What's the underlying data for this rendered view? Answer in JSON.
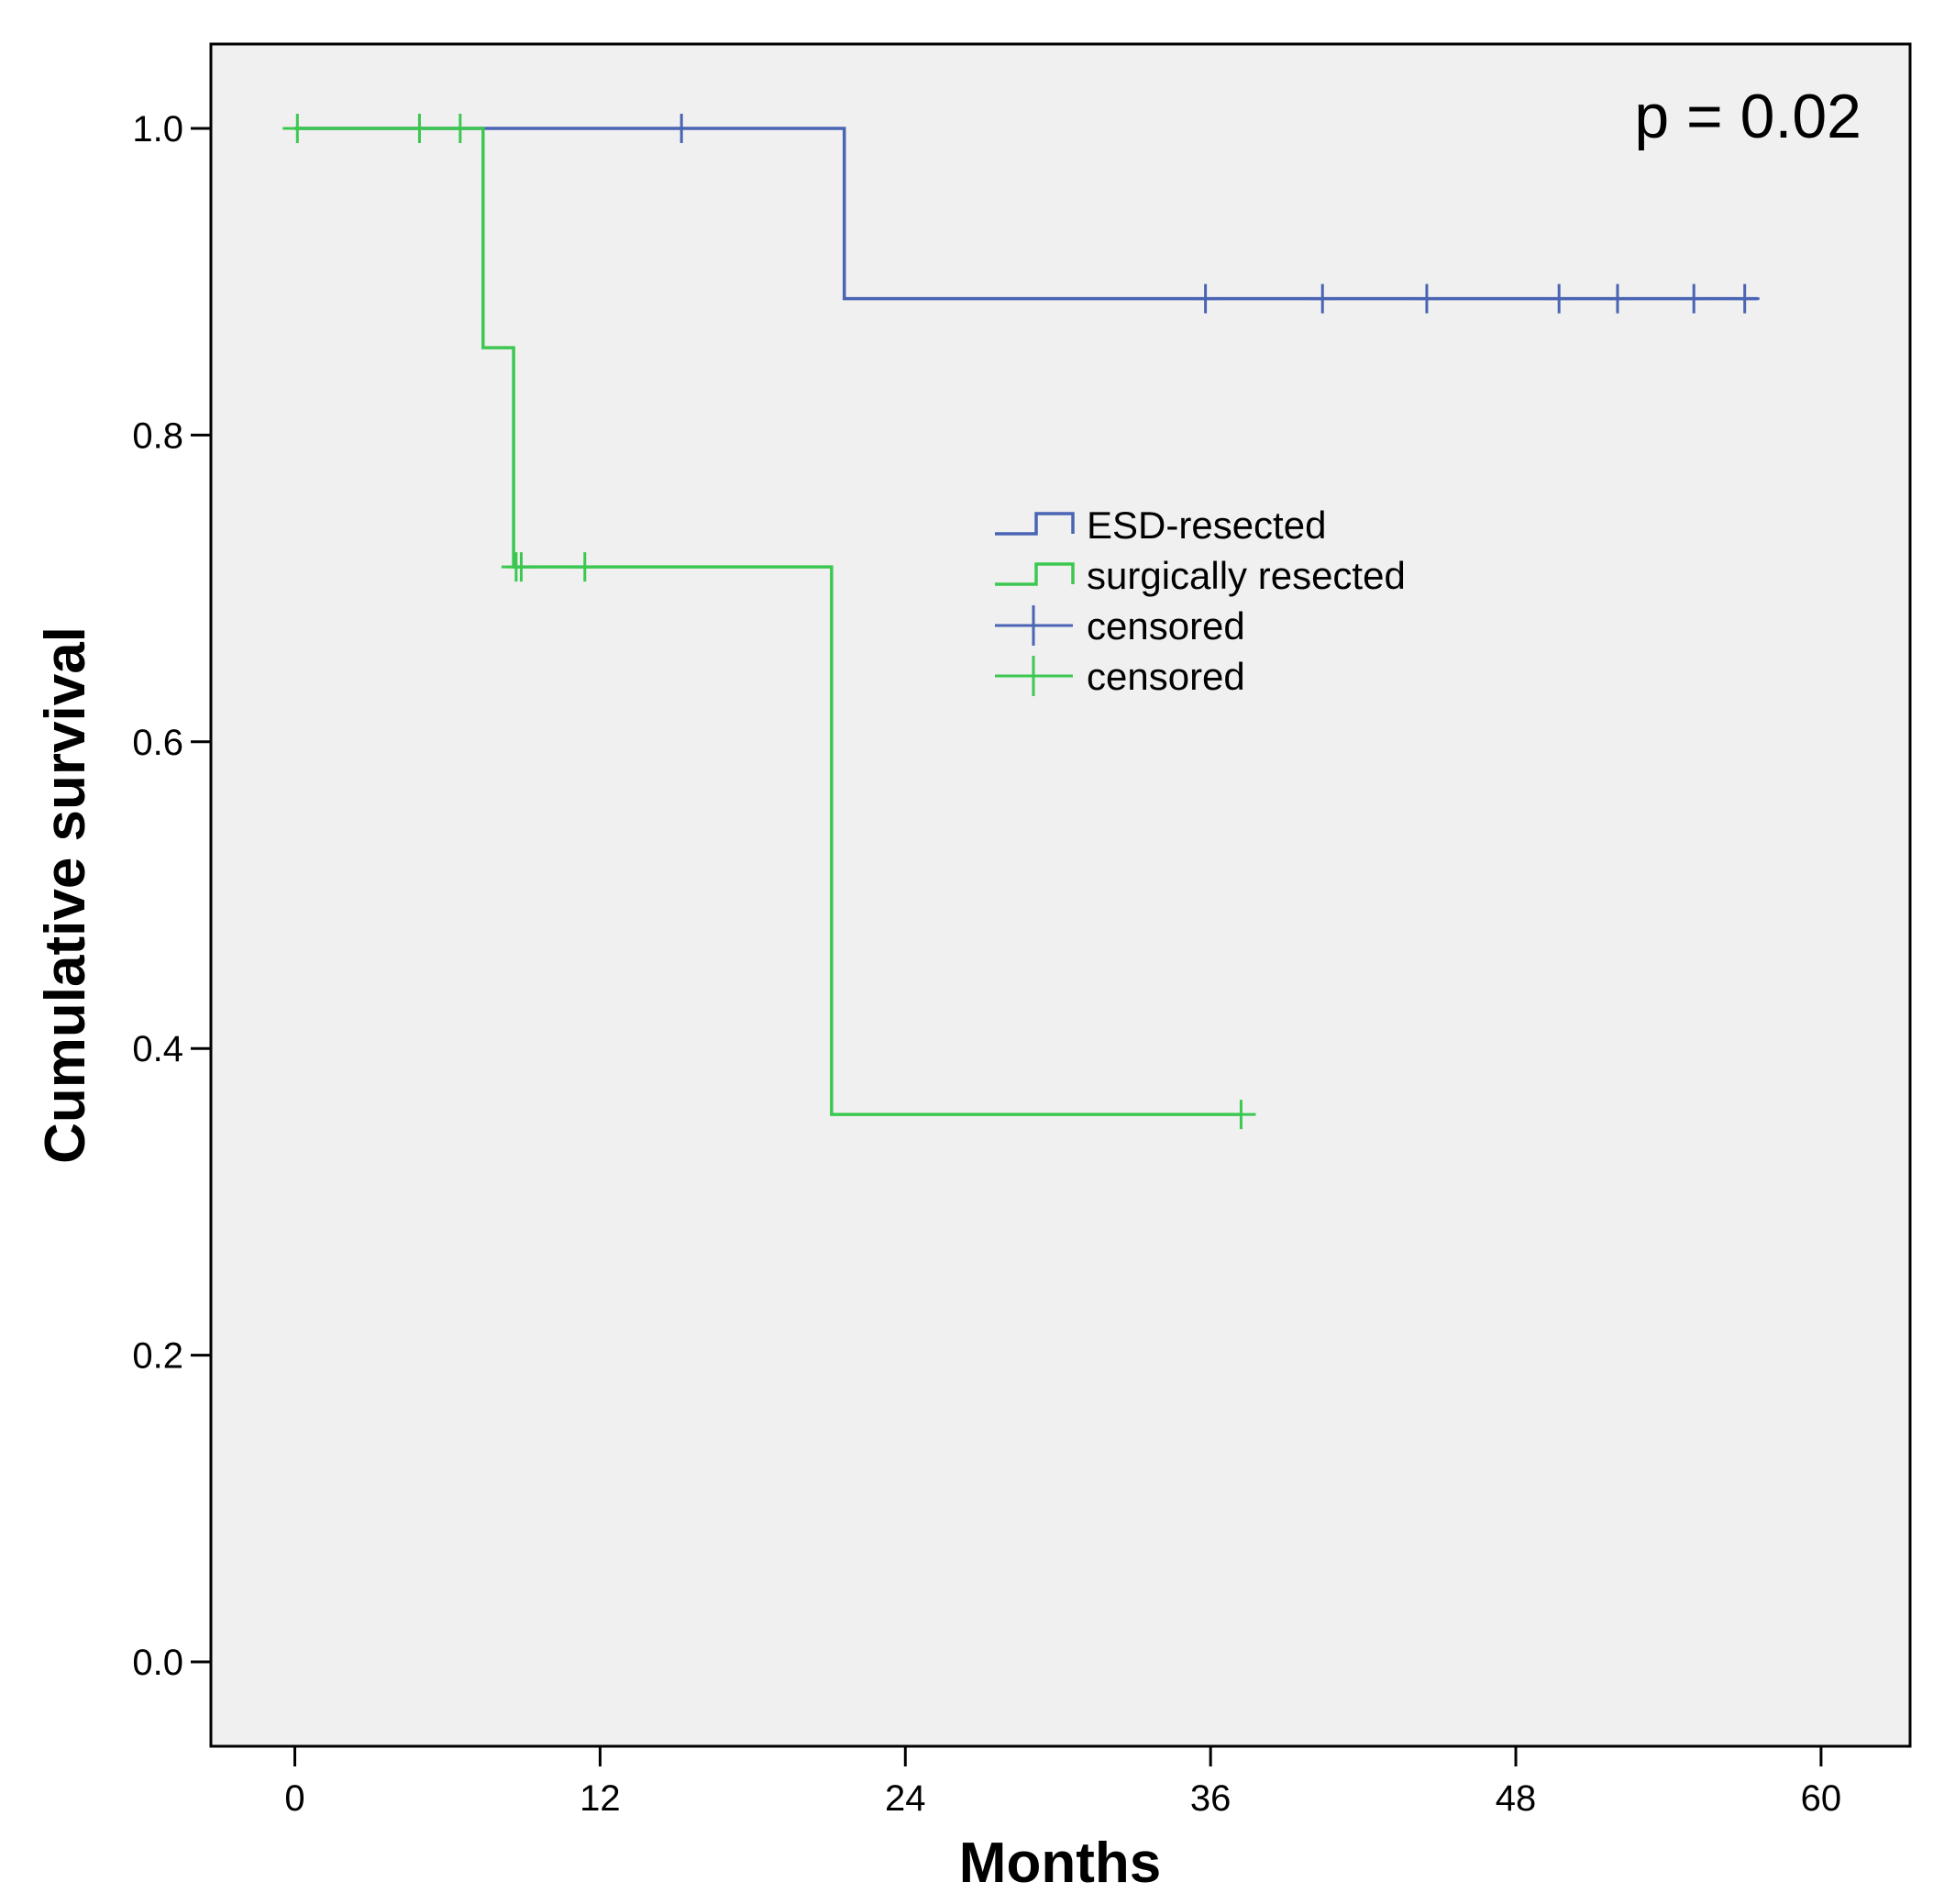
{
  "colors": {
    "plot_background": "#f0f0f0",
    "esd": "#4a64b4",
    "surgical": "#3cc850"
  },
  "chart_data": {
    "type": "line",
    "subtype": "kaplan-meier",
    "xlabel": "Months",
    "ylabel": "Cumulative survival",
    "xlim": [
      -3.3,
      63.5
    ],
    "ylim": [
      -0.055,
      1.055
    ],
    "xticks": [
      0,
      12,
      24,
      36,
      48,
      60
    ],
    "xtick_labels": [
      "0",
      "12",
      "24",
      "36",
      "48",
      "60"
    ],
    "yticks": [
      0.0,
      0.2,
      0.4,
      0.6,
      0.8,
      1.0
    ],
    "ytick_labels": [
      "0.0",
      "0.2",
      "0.4",
      "0.6",
      "0.8",
      "1.0"
    ],
    "grid": false,
    "legend_position": "center-right",
    "annotation": "p = 0.02",
    "legend": [
      {
        "label": "ESD-resected",
        "symbol": "step",
        "series": "esd"
      },
      {
        "label": "surgically resected",
        "symbol": "step",
        "series": "surgical"
      },
      {
        "label": "censored",
        "symbol": "cross",
        "series": "esd"
      },
      {
        "label": "censored",
        "symbol": "cross",
        "series": "surgical"
      }
    ],
    "series": [
      {
        "key": "esd",
        "steps": [
          [
            0,
            1.0
          ],
          [
            21.6,
            0.889
          ],
          [
            57.5,
            0.889
          ]
        ],
        "censored": [
          [
            15.2,
            1.0
          ],
          [
            35.8,
            0.889
          ],
          [
            40.4,
            0.889
          ],
          [
            44.5,
            0.889
          ],
          [
            49.7,
            0.889
          ],
          [
            52.0,
            0.889
          ],
          [
            55.0,
            0.889
          ],
          [
            57.0,
            0.889
          ]
        ]
      },
      {
        "key": "surgical",
        "steps": [
          [
            0,
            1.0
          ],
          [
            7.4,
            0.857
          ],
          [
            8.6,
            0.714
          ],
          [
            21.1,
            0.357
          ],
          [
            37.2,
            0.357
          ]
        ],
        "censored": [
          [
            0.1,
            1.0
          ],
          [
            4.9,
            1.0
          ],
          [
            6.5,
            1.0
          ],
          [
            8.7,
            0.714
          ],
          [
            8.9,
            0.714
          ],
          [
            11.4,
            0.714
          ],
          [
            37.2,
            0.357
          ]
        ]
      }
    ]
  }
}
